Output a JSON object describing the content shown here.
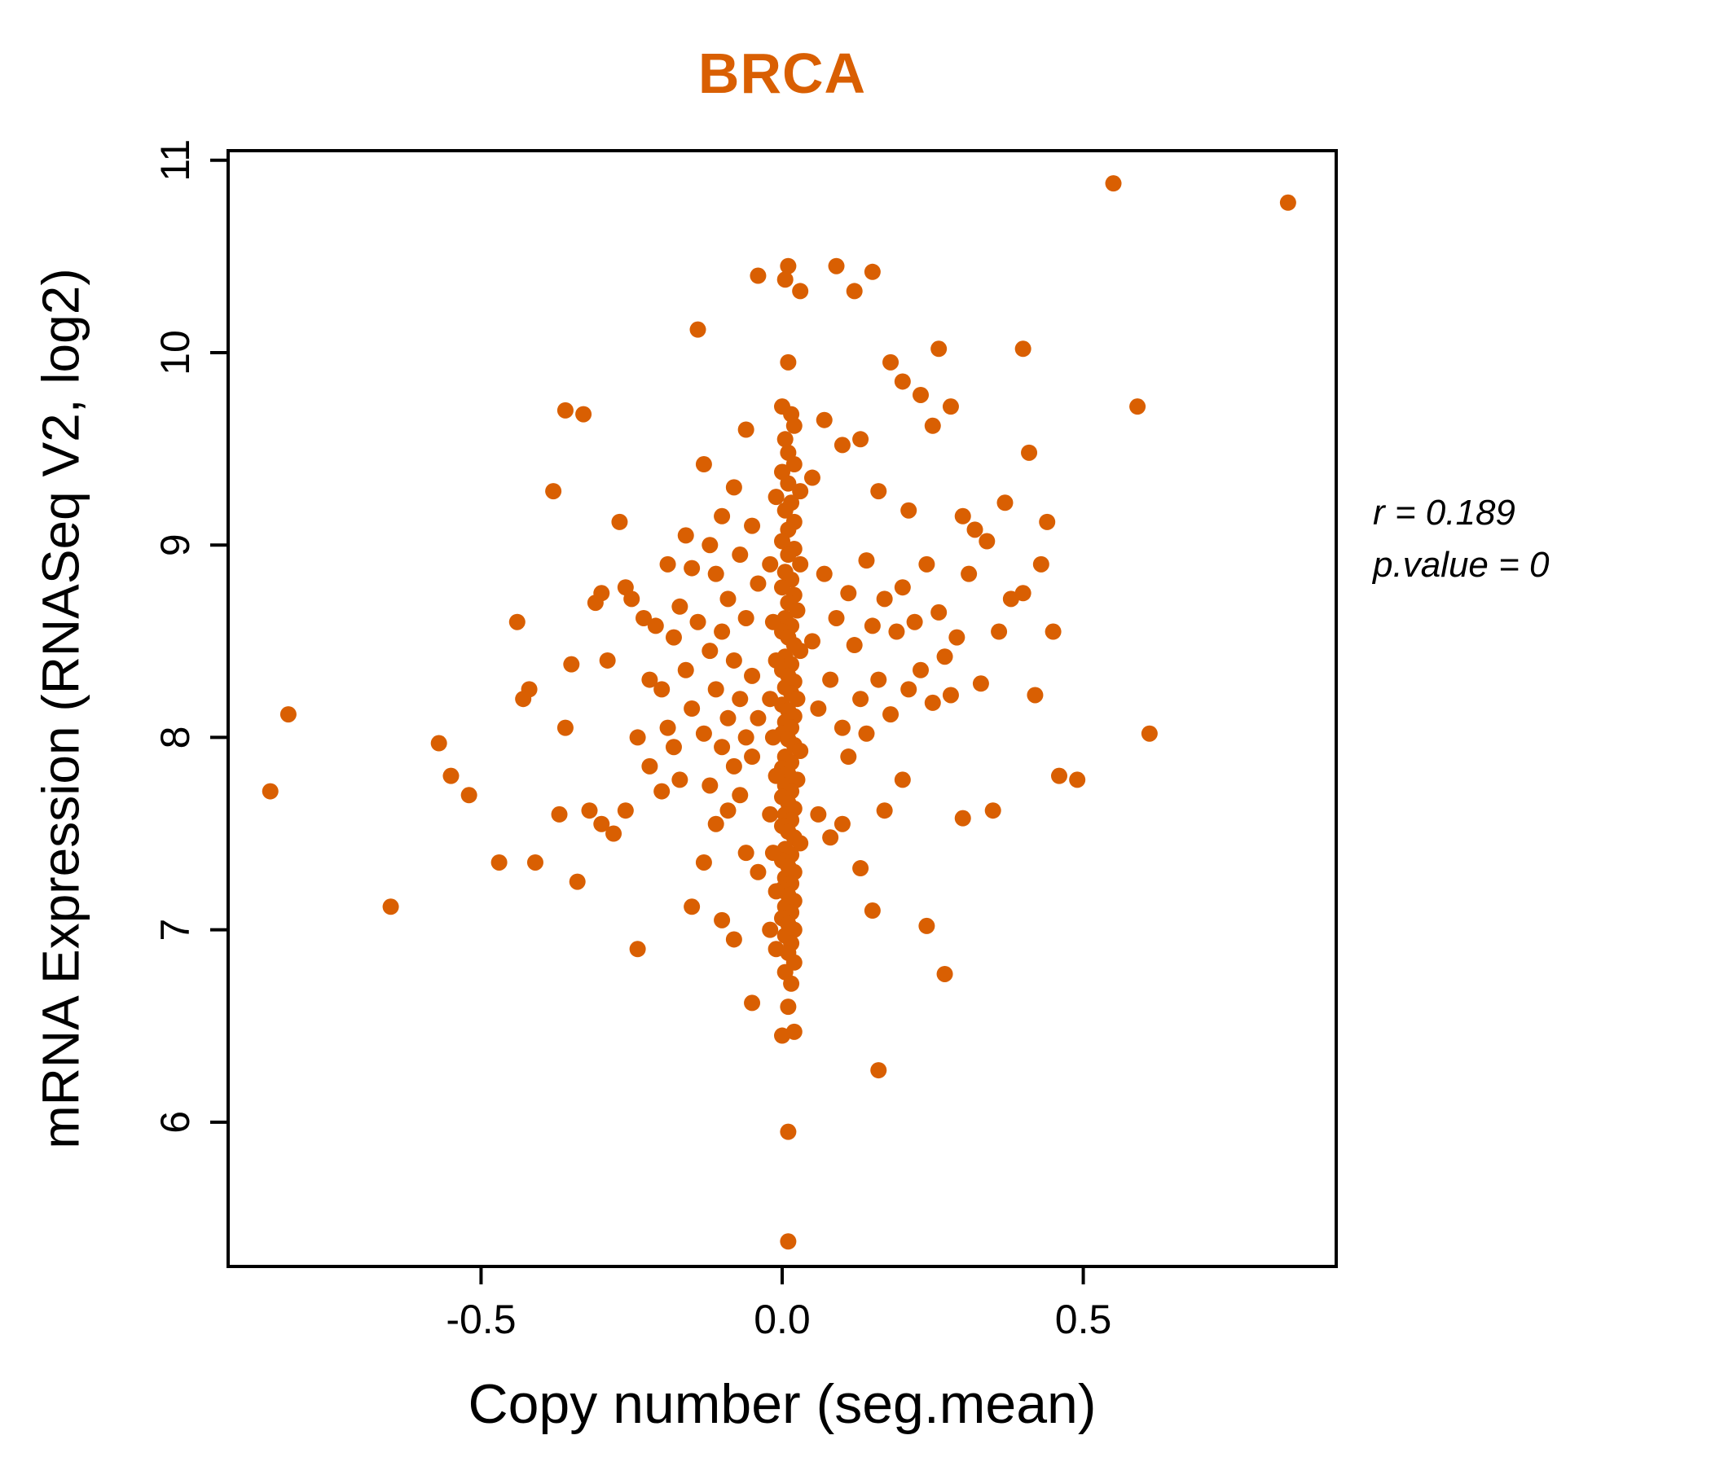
{
  "title_color": "#D95F02",
  "point_color": "#D95F02",
  "annotation": {
    "line1": "r = 0.189",
    "line2": "p.value = 0"
  },
  "chart_data": {
    "type": "scatter",
    "title": "BRCA",
    "xlabel": "Copy number (seg.mean)",
    "ylabel": "mRNA Expression (RNASeq V2, log2)",
    "xlim": [
      -0.92,
      0.92
    ],
    "ylim": [
      5.25,
      11.05
    ],
    "xticks": [
      -0.5,
      0.0,
      0.5
    ],
    "yticks": [
      6,
      7,
      8,
      9,
      10,
      11
    ],
    "grid": false,
    "legend": "none",
    "r": 0.189,
    "p_value": 0,
    "points": [
      [
        0.01,
        10.45
      ],
      [
        0.005,
        10.38
      ],
      [
        0.03,
        10.32
      ],
      [
        0.09,
        10.45
      ],
      [
        0.12,
        10.32
      ],
      [
        0.15,
        10.42
      ],
      [
        0.01,
        9.95
      ],
      [
        0.0,
        9.72
      ],
      [
        0.015,
        9.68
      ],
      [
        0.02,
        9.62
      ],
      [
        0.005,
        9.55
      ],
      [
        0.01,
        9.48
      ],
      [
        0.02,
        9.42
      ],
      [
        0.0,
        9.38
      ],
      [
        0.01,
        9.32
      ],
      [
        0.03,
        9.28
      ],
      [
        0.015,
        9.22
      ],
      [
        0.005,
        9.18
      ],
      [
        0.02,
        9.12
      ],
      [
        0.01,
        9.08
      ],
      [
        0.0,
        9.02
      ],
      [
        0.02,
        8.98
      ],
      [
        0.01,
        8.95
      ],
      [
        0.03,
        8.9
      ],
      [
        0.005,
        8.86
      ],
      [
        0.015,
        8.82
      ],
      [
        0.0,
        8.78
      ],
      [
        0.02,
        8.74
      ],
      [
        0.01,
        8.7
      ],
      [
        0.025,
        8.66
      ],
      [
        0.005,
        8.62
      ],
      [
        0.015,
        8.58
      ],
      [
        0.0,
        8.55
      ],
      [
        0.01,
        8.52
      ],
      [
        0.02,
        8.48
      ],
      [
        0.03,
        8.45
      ],
      [
        0.005,
        8.42
      ],
      [
        0.015,
        8.38
      ],
      [
        0.0,
        8.35
      ],
      [
        0.01,
        8.32
      ],
      [
        0.02,
        8.29
      ],
      [
        0.005,
        8.26
      ],
      [
        0.015,
        8.23
      ],
      [
        0.025,
        8.2
      ],
      [
        0.0,
        8.17
      ],
      [
        0.01,
        8.14
      ],
      [
        0.02,
        8.11
      ],
      [
        0.005,
        8.08
      ],
      [
        0.015,
        8.05
      ],
      [
        0.0,
        8.02
      ],
      [
        0.01,
        7.99
      ],
      [
        0.02,
        7.96
      ],
      [
        0.03,
        7.93
      ],
      [
        0.005,
        7.9
      ],
      [
        0.015,
        7.87
      ],
      [
        0.0,
        7.84
      ],
      [
        0.01,
        7.81
      ],
      [
        0.025,
        7.78
      ],
      [
        0.005,
        7.75
      ],
      [
        0.015,
        7.72
      ],
      [
        0.0,
        7.69
      ],
      [
        0.01,
        7.66
      ],
      [
        0.02,
        7.63
      ],
      [
        0.005,
        7.6
      ],
      [
        0.015,
        7.57
      ],
      [
        0.0,
        7.54
      ],
      [
        0.01,
        7.51
      ],
      [
        0.02,
        7.48
      ],
      [
        0.03,
        7.45
      ],
      [
        0.005,
        7.42
      ],
      [
        0.015,
        7.39
      ],
      [
        0.0,
        7.36
      ],
      [
        0.01,
        7.33
      ],
      [
        0.02,
        7.3
      ],
      [
        0.005,
        7.27
      ],
      [
        0.015,
        7.24
      ],
      [
        0.0,
        7.21
      ],
      [
        0.01,
        7.18
      ],
      [
        0.02,
        7.15
      ],
      [
        0.005,
        7.12
      ],
      [
        0.015,
        7.09
      ],
      [
        0.0,
        7.06
      ],
      [
        0.01,
        7.03
      ],
      [
        0.02,
        7.0
      ],
      [
        0.005,
        6.97
      ],
      [
        0.015,
        6.93
      ],
      [
        0.01,
        6.88
      ],
      [
        0.02,
        6.83
      ],
      [
        0.005,
        6.78
      ],
      [
        0.015,
        6.72
      ],
      [
        0.01,
        6.6
      ],
      [
        0.0,
        6.45
      ],
      [
        0.02,
        6.47
      ],
      [
        0.01,
        5.95
      ],
      [
        0.01,
        5.38
      ],
      [
        -0.01,
        9.25
      ],
      [
        -0.02,
        8.9
      ],
      [
        -0.015,
        8.6
      ],
      [
        -0.01,
        8.4
      ],
      [
        -0.02,
        8.2
      ],
      [
        -0.015,
        8.0
      ],
      [
        -0.01,
        7.8
      ],
      [
        -0.02,
        7.6
      ],
      [
        -0.015,
        7.4
      ],
      [
        -0.01,
        7.2
      ],
      [
        -0.02,
        7.0
      ],
      [
        -0.01,
        6.9
      ],
      [
        -0.44,
        8.6
      ],
      [
        -0.42,
        8.25
      ],
      [
        -0.43,
        8.2
      ],
      [
        -0.41,
        7.35
      ],
      [
        -0.38,
        9.28
      ],
      [
        -0.37,
        7.6
      ],
      [
        -0.36,
        8.05
      ],
      [
        -0.36,
        9.7
      ],
      [
        -0.35,
        8.38
      ],
      [
        -0.34,
        7.25
      ],
      [
        -0.33,
        9.68
      ],
      [
        -0.32,
        7.62
      ],
      [
        -0.31,
        8.7
      ],
      [
        -0.3,
        8.75
      ],
      [
        -0.3,
        7.55
      ],
      [
        -0.29,
        8.4
      ],
      [
        -0.28,
        7.5
      ],
      [
        -0.27,
        9.12
      ],
      [
        -0.26,
        8.78
      ],
      [
        -0.26,
        7.62
      ],
      [
        -0.25,
        8.72
      ],
      [
        -0.24,
        8.0
      ],
      [
        -0.24,
        6.9
      ],
      [
        -0.23,
        8.62
      ],
      [
        -0.22,
        8.3
      ],
      [
        -0.22,
        7.85
      ],
      [
        -0.21,
        8.58
      ],
      [
        -0.2,
        8.25
      ],
      [
        -0.2,
        7.72
      ],
      [
        -0.19,
        8.9
      ],
      [
        -0.19,
        8.05
      ],
      [
        -0.18,
        8.52
      ],
      [
        -0.18,
        7.95
      ],
      [
        -0.17,
        8.68
      ],
      [
        -0.17,
        7.78
      ],
      [
        -0.16,
        9.05
      ],
      [
        -0.16,
        8.35
      ],
      [
        -0.15,
        8.88
      ],
      [
        -0.15,
        8.15
      ],
      [
        -0.15,
        7.12
      ],
      [
        -0.14,
        10.12
      ],
      [
        -0.14,
        8.6
      ],
      [
        -0.13,
        9.42
      ],
      [
        -0.13,
        8.02
      ],
      [
        -0.13,
        7.35
      ],
      [
        -0.12,
        9.0
      ],
      [
        -0.12,
        8.45
      ],
      [
        -0.12,
        7.75
      ],
      [
        -0.11,
        8.85
      ],
      [
        -0.11,
        8.25
      ],
      [
        -0.11,
        7.55
      ],
      [
        -0.1,
        9.15
      ],
      [
        -0.1,
        8.55
      ],
      [
        -0.1,
        7.95
      ],
      [
        -0.1,
        7.05
      ],
      [
        -0.09,
        8.72
      ],
      [
        -0.09,
        8.1
      ],
      [
        -0.09,
        7.62
      ],
      [
        -0.08,
        9.3
      ],
      [
        -0.08,
        8.4
      ],
      [
        -0.08,
        7.85
      ],
      [
        -0.08,
        6.95
      ],
      [
        -0.07,
        8.95
      ],
      [
        -0.07,
        8.2
      ],
      [
        -0.07,
        7.7
      ],
      [
        -0.06,
        9.6
      ],
      [
        -0.06,
        8.62
      ],
      [
        -0.06,
        8.0
      ],
      [
        -0.06,
        7.4
      ],
      [
        -0.05,
        9.1
      ],
      [
        -0.05,
        8.32
      ],
      [
        -0.05,
        7.9
      ],
      [
        -0.05,
        6.62
      ],
      [
        -0.04,
        10.4
      ],
      [
        -0.04,
        8.8
      ],
      [
        -0.04,
        8.1
      ],
      [
        -0.04,
        7.3
      ],
      [
        0.05,
        9.35
      ],
      [
        0.05,
        8.5
      ],
      [
        0.06,
        8.15
      ],
      [
        0.06,
        7.6
      ],
      [
        0.07,
        9.65
      ],
      [
        0.07,
        8.85
      ],
      [
        0.08,
        8.3
      ],
      [
        0.08,
        7.48
      ],
      [
        0.09,
        8.62
      ],
      [
        0.1,
        9.52
      ],
      [
        0.1,
        8.05
      ],
      [
        0.1,
        7.55
      ],
      [
        0.11,
        8.75
      ],
      [
        0.11,
        7.9
      ],
      [
        0.12,
        8.48
      ],
      [
        0.13,
        9.55
      ],
      [
        0.13,
        8.2
      ],
      [
        0.13,
        7.32
      ],
      [
        0.14,
        8.92
      ],
      [
        0.14,
        8.02
      ],
      [
        0.15,
        8.58
      ],
      [
        0.15,
        7.1
      ],
      [
        0.16,
        9.28
      ],
      [
        0.16,
        8.3
      ],
      [
        0.16,
        6.27
      ],
      [
        0.17,
        8.72
      ],
      [
        0.17,
        7.62
      ],
      [
        0.18,
        9.95
      ],
      [
        0.18,
        8.12
      ],
      [
        0.19,
        8.55
      ],
      [
        0.2,
        9.85
      ],
      [
        0.2,
        8.78
      ],
      [
        0.2,
        7.78
      ],
      [
        0.21,
        9.18
      ],
      [
        0.21,
        8.25
      ],
      [
        0.22,
        8.6
      ],
      [
        0.23,
        9.78
      ],
      [
        0.23,
        8.35
      ],
      [
        0.24,
        8.9
      ],
      [
        0.24,
        7.02
      ],
      [
        0.25,
        9.62
      ],
      [
        0.25,
        8.18
      ],
      [
        0.26,
        10.02
      ],
      [
        0.26,
        8.65
      ],
      [
        0.27,
        8.42
      ],
      [
        0.27,
        6.77
      ],
      [
        0.28,
        9.72
      ],
      [
        0.28,
        8.22
      ],
      [
        0.29,
        8.52
      ],
      [
        0.3,
        9.15
      ],
      [
        0.3,
        7.58
      ],
      [
        0.31,
        8.85
      ],
      [
        0.32,
        9.08
      ],
      [
        0.33,
        8.28
      ],
      [
        0.34,
        9.02
      ],
      [
        0.35,
        7.62
      ],
      [
        0.36,
        8.55
      ],
      [
        0.37,
        9.22
      ],
      [
        0.38,
        8.72
      ],
      [
        0.4,
        10.02
      ],
      [
        0.4,
        8.75
      ],
      [
        0.41,
        9.48
      ],
      [
        0.42,
        8.22
      ],
      [
        0.43,
        8.9
      ],
      [
        0.44,
        9.12
      ],
      [
        0.45,
        8.55
      ],
      [
        -0.85,
        7.72
      ],
      [
        -0.82,
        8.12
      ],
      [
        -0.65,
        7.12
      ],
      [
        -0.57,
        7.97
      ],
      [
        -0.55,
        7.8
      ],
      [
        -0.52,
        7.7
      ],
      [
        -0.47,
        7.35
      ],
      [
        0.46,
        7.8
      ],
      [
        0.49,
        7.78
      ],
      [
        0.55,
        10.88
      ],
      [
        0.59,
        9.72
      ],
      [
        0.61,
        8.02
      ],
      [
        0.84,
        10.78
      ]
    ]
  }
}
